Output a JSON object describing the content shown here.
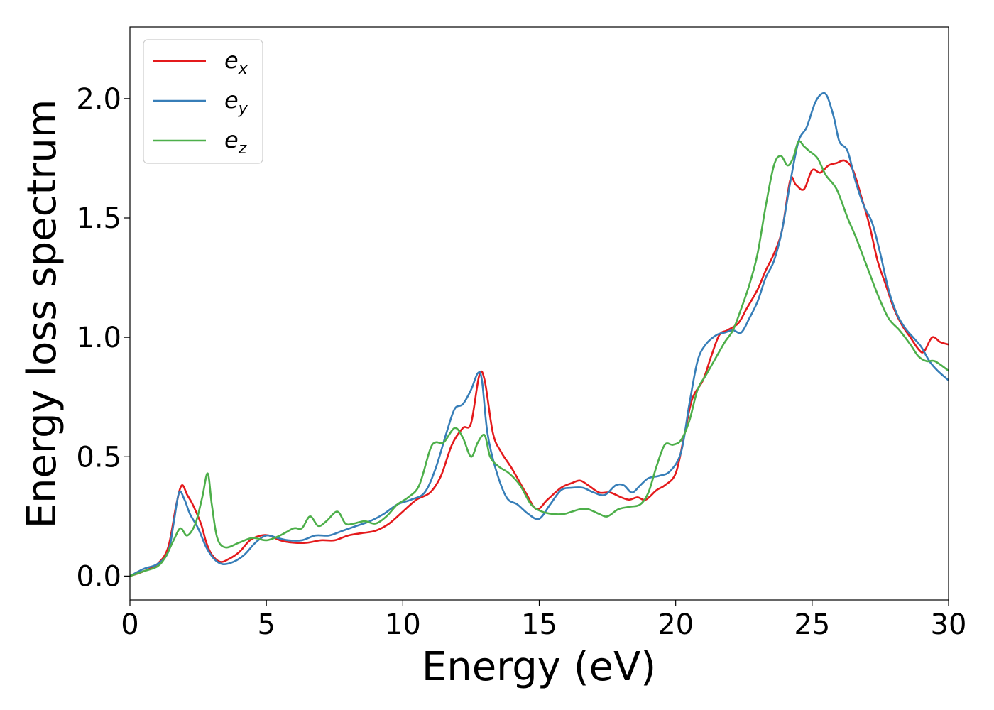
{
  "chart_data": {
    "type": "line",
    "title": "",
    "xlabel": "Energy (eV)",
    "ylabel": "Energy loss spectrum",
    "xlim": [
      0,
      30
    ],
    "ylim": [
      -0.1,
      2.3
    ],
    "xticks": [
      0,
      5,
      10,
      15,
      20,
      25,
      30
    ],
    "xtick_labels": [
      "0",
      "5",
      "10",
      "15",
      "20",
      "25",
      "30"
    ],
    "yticks": [
      0.0,
      0.5,
      1.0,
      1.5,
      2.0
    ],
    "ytick_labels": [
      "0.0",
      "0.5",
      "1.0",
      "1.5",
      "2.0"
    ],
    "grid": false,
    "legend_position": "top-left",
    "series": [
      {
        "name": "e_x",
        "legend_base": "e",
        "legend_sub": "x",
        "color": "#e41a1c",
        "x": [
          0,
          0.5,
          1.0,
          1.4,
          1.7,
          1.9,
          2.1,
          2.3,
          2.6,
          2.8,
          3.0,
          3.3,
          3.6,
          4.0,
          4.4,
          4.8,
          5.1,
          5.5,
          6.0,
          6.5,
          7.0,
          7.5,
          8.0,
          8.5,
          9.0,
          9.5,
          10.0,
          10.5,
          11.0,
          11.4,
          11.8,
          12.2,
          12.5,
          12.8,
          13.0,
          13.3,
          13.6,
          14.0,
          14.5,
          14.9,
          15.3,
          15.8,
          16.2,
          16.5,
          16.8,
          17.2,
          17.6,
          18.0,
          18.3,
          18.6,
          18.9,
          19.3,
          19.6,
          20.0,
          20.3,
          20.6,
          21.0,
          21.3,
          21.6,
          21.9,
          22.3,
          22.6,
          23.0,
          23.3,
          23.6,
          23.9,
          24.2,
          24.4,
          24.7,
          25.0,
          25.3,
          25.6,
          25.9,
          26.2,
          26.5,
          26.8,
          27.1,
          27.4,
          27.7,
          28.0,
          28.3,
          28.6,
          28.9,
          29.1,
          29.4,
          29.7,
          30.0
        ],
        "y": [
          0.0,
          0.02,
          0.05,
          0.12,
          0.3,
          0.38,
          0.34,
          0.3,
          0.22,
          0.14,
          0.09,
          0.06,
          0.07,
          0.1,
          0.15,
          0.17,
          0.17,
          0.15,
          0.14,
          0.14,
          0.15,
          0.15,
          0.17,
          0.18,
          0.19,
          0.22,
          0.27,
          0.32,
          0.35,
          0.42,
          0.55,
          0.62,
          0.64,
          0.84,
          0.82,
          0.6,
          0.52,
          0.45,
          0.35,
          0.28,
          0.32,
          0.37,
          0.39,
          0.4,
          0.38,
          0.35,
          0.35,
          0.33,
          0.32,
          0.33,
          0.32,
          0.36,
          0.38,
          0.43,
          0.58,
          0.74,
          0.82,
          0.92,
          1.01,
          1.03,
          1.06,
          1.12,
          1.2,
          1.28,
          1.35,
          1.45,
          1.66,
          1.64,
          1.62,
          1.7,
          1.69,
          1.72,
          1.73,
          1.74,
          1.7,
          1.59,
          1.47,
          1.32,
          1.22,
          1.12,
          1.05,
          1.0,
          0.95,
          0.94,
          1.0,
          0.98,
          0.97
        ]
      },
      {
        "name": "e_y",
        "legend_base": "e",
        "legend_sub": "y",
        "color": "#377eb8",
        "x": [
          0,
          0.5,
          1.0,
          1.4,
          1.6,
          1.8,
          2.0,
          2.2,
          2.5,
          2.8,
          3.1,
          3.4,
          3.8,
          4.2,
          4.6,
          5.0,
          5.4,
          5.8,
          6.3,
          6.8,
          7.3,
          7.8,
          8.3,
          8.8,
          9.3,
          9.8,
          10.3,
          10.8,
          11.2,
          11.6,
          11.9,
          12.2,
          12.5,
          12.75,
          12.9,
          13.1,
          13.4,
          13.8,
          14.2,
          14.6,
          15.0,
          15.4,
          15.8,
          16.2,
          16.6,
          17.0,
          17.4,
          17.8,
          18.1,
          18.4,
          18.7,
          19.0,
          19.4,
          19.8,
          20.2,
          20.5,
          20.8,
          21.1,
          21.5,
          21.8,
          22.1,
          22.4,
          22.7,
          23.0,
          23.3,
          23.6,
          23.9,
          24.2,
          24.5,
          24.8,
          25.1,
          25.35,
          25.55,
          25.8,
          26.0,
          26.3,
          26.6,
          26.9,
          27.2,
          27.5,
          27.8,
          28.1,
          28.4,
          28.7,
          29.0,
          29.3,
          29.6,
          30.0
        ],
        "y": [
          0.0,
          0.03,
          0.05,
          0.1,
          0.22,
          0.35,
          0.32,
          0.26,
          0.2,
          0.12,
          0.07,
          0.05,
          0.06,
          0.09,
          0.14,
          0.17,
          0.16,
          0.15,
          0.15,
          0.17,
          0.17,
          0.19,
          0.21,
          0.23,
          0.26,
          0.3,
          0.32,
          0.35,
          0.45,
          0.6,
          0.7,
          0.72,
          0.78,
          0.85,
          0.82,
          0.6,
          0.45,
          0.33,
          0.3,
          0.26,
          0.24,
          0.3,
          0.36,
          0.37,
          0.37,
          0.35,
          0.34,
          0.38,
          0.38,
          0.35,
          0.38,
          0.41,
          0.42,
          0.44,
          0.52,
          0.72,
          0.9,
          0.97,
          1.01,
          1.02,
          1.03,
          1.02,
          1.08,
          1.15,
          1.25,
          1.32,
          1.45,
          1.65,
          1.82,
          1.88,
          1.98,
          2.02,
          2.01,
          1.92,
          1.82,
          1.78,
          1.65,
          1.55,
          1.48,
          1.35,
          1.2,
          1.1,
          1.04,
          1.0,
          0.96,
          0.9,
          0.86,
          0.82
        ]
      },
      {
        "name": "e_z",
        "legend_base": "e",
        "legend_sub": "z",
        "color": "#4daf4a",
        "x": [
          0,
          0.5,
          1.0,
          1.3,
          1.6,
          1.85,
          2.1,
          2.4,
          2.65,
          2.85,
          3.0,
          3.2,
          3.5,
          4.0,
          4.5,
          5.0,
          5.5,
          6.0,
          6.3,
          6.6,
          6.9,
          7.2,
          7.6,
          7.9,
          8.2,
          8.6,
          9.0,
          9.4,
          9.8,
          10.2,
          10.6,
          11.0,
          11.2,
          11.5,
          11.9,
          12.2,
          12.5,
          12.75,
          13.0,
          13.2,
          13.5,
          13.9,
          14.3,
          14.7,
          15.1,
          15.5,
          15.9,
          16.2,
          16.5,
          16.8,
          17.2,
          17.5,
          17.9,
          18.3,
          18.7,
          19.0,
          19.3,
          19.6,
          19.9,
          20.2,
          20.5,
          20.8,
          21.1,
          21.4,
          21.8,
          22.1,
          22.4,
          22.7,
          23.0,
          23.3,
          23.6,
          23.85,
          24.1,
          24.3,
          24.5,
          24.7,
          24.9,
          25.2,
          25.5,
          25.9,
          26.3,
          26.6,
          27.0,
          27.4,
          27.8,
          28.2,
          28.6,
          28.9,
          29.2,
          29.5,
          30.0
        ],
        "y": [
          0.0,
          0.02,
          0.04,
          0.08,
          0.15,
          0.2,
          0.17,
          0.22,
          0.33,
          0.43,
          0.3,
          0.16,
          0.12,
          0.14,
          0.16,
          0.15,
          0.17,
          0.2,
          0.2,
          0.25,
          0.21,
          0.23,
          0.27,
          0.22,
          0.22,
          0.23,
          0.22,
          0.25,
          0.3,
          0.33,
          0.38,
          0.53,
          0.56,
          0.56,
          0.62,
          0.58,
          0.5,
          0.56,
          0.59,
          0.5,
          0.46,
          0.43,
          0.38,
          0.3,
          0.27,
          0.26,
          0.26,
          0.27,
          0.28,
          0.28,
          0.26,
          0.25,
          0.28,
          0.29,
          0.3,
          0.35,
          0.46,
          0.55,
          0.55,
          0.57,
          0.65,
          0.78,
          0.84,
          0.9,
          0.98,
          1.03,
          1.12,
          1.22,
          1.35,
          1.55,
          1.72,
          1.76,
          1.72,
          1.75,
          1.82,
          1.8,
          1.78,
          1.75,
          1.68,
          1.62,
          1.5,
          1.42,
          1.3,
          1.18,
          1.08,
          1.03,
          0.97,
          0.92,
          0.9,
          0.9,
          0.86
        ]
      }
    ]
  }
}
